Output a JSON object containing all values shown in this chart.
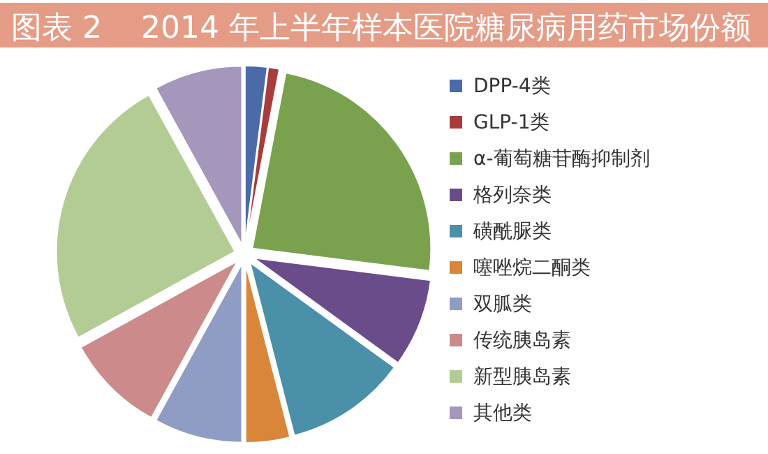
{
  "chart_data": {
    "type": "pie",
    "title": "图表 2    2014 年上半年样本医院糖尿病用药市场份额",
    "categories": [
      "DPP-4类",
      "GLP-1类",
      "α-葡萄糖苷酶抑制剂",
      "格列奈类",
      "磺酰脲类",
      "噻唑烷二酮类",
      "双胍类",
      "传统胰岛素",
      "新型胰岛素",
      "其他类"
    ],
    "values": [
      2,
      1,
      24,
      8,
      11,
      4,
      8,
      9,
      25,
      8
    ],
    "colors": [
      "#4a6aa8",
      "#a83c3c",
      "#7aa24e",
      "#6a4c8a",
      "#4a90a8",
      "#d9853a",
      "#8f9cc4",
      "#cc8a8a",
      "#b3cc94",
      "#a596bc"
    ],
    "legend": "right"
  }
}
